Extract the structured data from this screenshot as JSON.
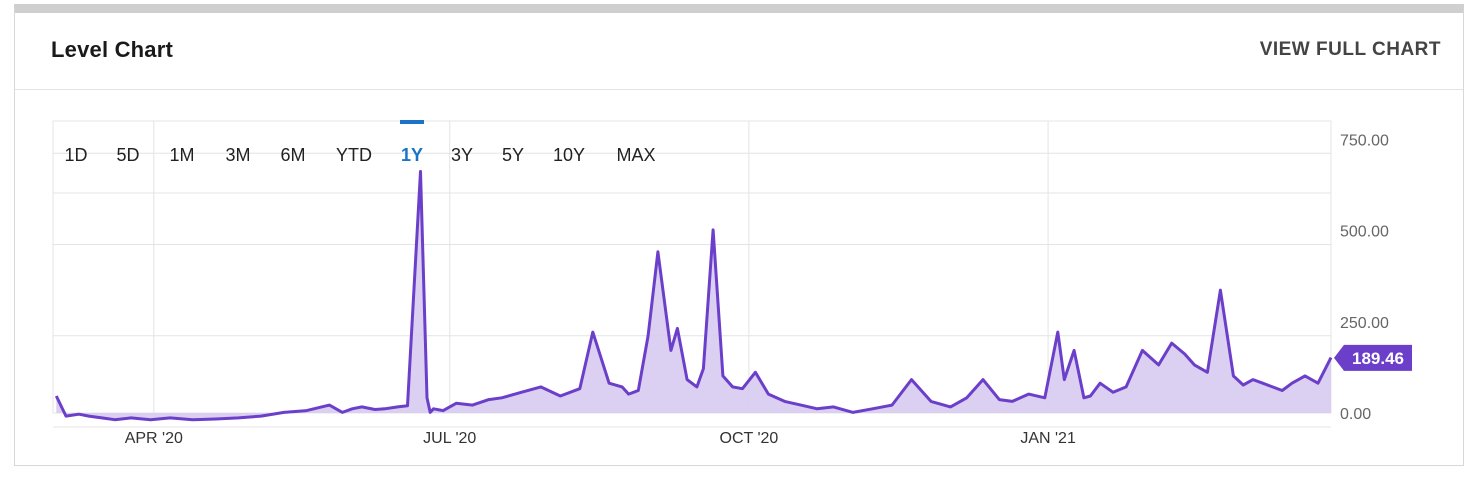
{
  "card": {
    "title": "Level Chart",
    "view_full_chart": "VIEW FULL CHART"
  },
  "ranges": {
    "items": [
      "1D",
      "5D",
      "1M",
      "3M",
      "6M",
      "YTD",
      "1Y",
      "3Y",
      "5Y",
      "10Y",
      "MAX"
    ],
    "selected": "1Y"
  },
  "colors": {
    "line": "#6b3fc9",
    "area": "#d7cbf0",
    "accent": "#1a73c7",
    "grid": "#e4e4e4",
    "badge": "#6b3fc9"
  },
  "chart_data": {
    "type": "area",
    "x_ticks": [
      "APR '20",
      "JUL '20",
      "OCT '20",
      "JAN '21"
    ],
    "y_ticks": [
      "750.00",
      "500.00",
      "250.00",
      "0.00"
    ],
    "ylim": [
      0,
      800
    ],
    "grid": true,
    "current_value": 189.46,
    "current_value_label": "189.46",
    "x": [
      "2020-03-02",
      "2020-03-05",
      "2020-03-09",
      "2020-03-12",
      "2020-03-16",
      "2020-03-20",
      "2020-03-25",
      "2020-03-31",
      "2020-04-06",
      "2020-04-13",
      "2020-04-20",
      "2020-04-27",
      "2020-05-04",
      "2020-05-11",
      "2020-05-18",
      "2020-05-25",
      "2020-05-29",
      "2020-06-01",
      "2020-06-04",
      "2020-06-08",
      "2020-06-11",
      "2020-06-15",
      "2020-06-18",
      "2020-06-22",
      "2020-06-24",
      "2020-06-25",
      "2020-06-26",
      "2020-06-29",
      "2020-07-03",
      "2020-07-08",
      "2020-07-13",
      "2020-07-17",
      "2020-07-23",
      "2020-07-29",
      "2020-08-04",
      "2020-08-10",
      "2020-08-14",
      "2020-08-19",
      "2020-08-23",
      "2020-08-25",
      "2020-08-28",
      "2020-08-31",
      "2020-09-03",
      "2020-09-07",
      "2020-09-09",
      "2020-09-12",
      "2020-09-15",
      "2020-09-17",
      "2020-09-20",
      "2020-09-23",
      "2020-09-26",
      "2020-09-29",
      "2020-10-03",
      "2020-10-07",
      "2020-10-12",
      "2020-10-17",
      "2020-10-22",
      "2020-10-27",
      "2020-11-02",
      "2020-11-08",
      "2020-11-14",
      "2020-11-20",
      "2020-11-26",
      "2020-12-02",
      "2020-12-07",
      "2020-12-12",
      "2020-12-17",
      "2020-12-21",
      "2020-12-26",
      "2020-12-31",
      "2021-01-04",
      "2021-01-06",
      "2021-01-09",
      "2021-01-12",
      "2021-01-14",
      "2021-01-17",
      "2021-01-21",
      "2021-01-25",
      "2021-01-30",
      "2021-02-04",
      "2021-02-08",
      "2021-02-12",
      "2021-02-15",
      "2021-02-19",
      "2021-02-23",
      "2021-02-27",
      "2021-03-02",
      "2021-03-05",
      "2021-03-08",
      "2021-03-11",
      "2021-03-14",
      "2021-03-17",
      "2021-03-21",
      "2021-03-25",
      "2021-03-29"
    ],
    "values": [
      85,
      30,
      35,
      30,
      25,
      20,
      25,
      20,
      25,
      20,
      22,
      25,
      30,
      40,
      45,
      60,
      40,
      50,
      55,
      48,
      50,
      55,
      58,
      700,
      80,
      40,
      50,
      45,
      65,
      60,
      75,
      80,
      95,
      110,
      85,
      105,
      260,
      120,
      110,
      90,
      100,
      250,
      480,
      210,
      270,
      130,
      110,
      160,
      540,
      140,
      110,
      105,
      150,
      90,
      70,
      60,
      50,
      55,
      40,
      50,
      60,
      130,
      70,
      55,
      80,
      130,
      75,
      70,
      90,
      80,
      260,
      130,
      210,
      80,
      85,
      120,
      95,
      110,
      210,
      170,
      230,
      200,
      170,
      150,
      375,
      140,
      115,
      130,
      120,
      110,
      100,
      120,
      140,
      120,
      190
    ]
  }
}
